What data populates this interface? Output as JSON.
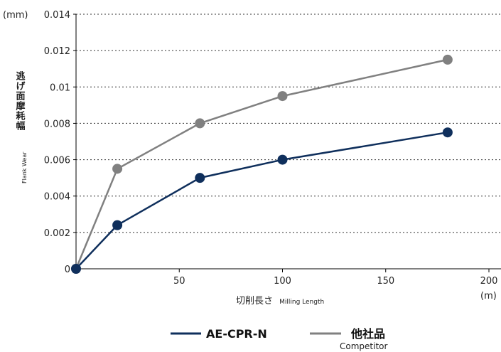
{
  "chart_data": {
    "type": "line",
    "y_unit": "(mm)",
    "x_unit": "(m)",
    "ylabel_jp": "逃げ面摩耗幅",
    "ylabel_en": "Flank Wear",
    "xlabel_jp": "切削長さ",
    "xlabel_en": "Milling Length",
    "xlim": [
      0,
      200
    ],
    "ylim": [
      0,
      0.014
    ],
    "x_ticks": [
      "50",
      "100",
      "150",
      "200"
    ],
    "x_tick_values": [
      50,
      100,
      150,
      200
    ],
    "y_ticks": [
      "0",
      "0.002",
      "0.004",
      "0.006",
      "0.008",
      "0.01",
      "0.012",
      "0.014"
    ],
    "y_tick_values": [
      0,
      0.002,
      0.004,
      0.006,
      0.008,
      0.01,
      0.012,
      0.014
    ],
    "grid": "horizontal dotted",
    "legend_position": "bottom-center",
    "series": [
      {
        "name": "AE-CPR-N",
        "color": "#0f2f5c",
        "x": [
          0,
          20,
          60,
          100,
          180
        ],
        "y": [
          0,
          0.0024,
          0.005,
          0.006,
          0.0075
        ]
      },
      {
        "name": "他社品",
        "subname": "Competitor",
        "color": "#808080",
        "x": [
          0,
          20,
          60,
          100,
          180
        ],
        "y": [
          0,
          0.0055,
          0.008,
          0.0095,
          0.0115
        ]
      }
    ]
  }
}
